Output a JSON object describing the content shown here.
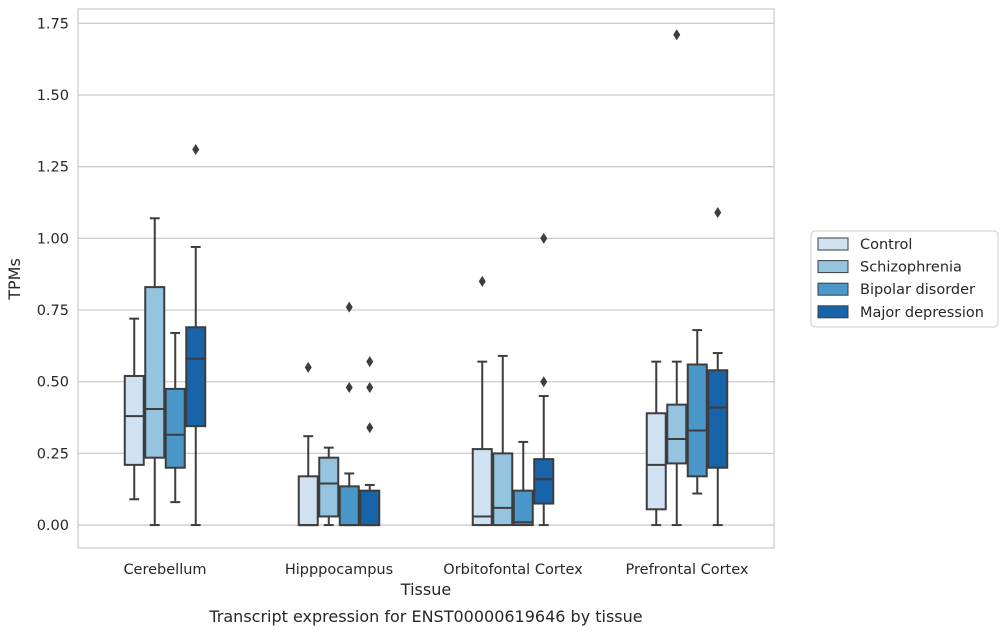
{
  "caption": "Transcript expression for ENST00000619646 by tissue",
  "chart_data": {
    "type": "box",
    "xlabel": "Tissue",
    "ylabel": "TPMs",
    "ylim": [
      -0.08,
      1.8
    ],
    "yticks": [
      0.0,
      0.25,
      0.5,
      0.75,
      1.0,
      1.25,
      1.5,
      1.75
    ],
    "ytick_labels": [
      "0.00",
      "0.25",
      "0.50",
      "0.75",
      "1.00",
      "1.25",
      "1.50",
      "1.75"
    ],
    "grid": "horizontal",
    "legend_position": "right",
    "categories": [
      "Cerebellum",
      "Hipppocampus",
      "Orbitofontal Cortex",
      "Prefrontal Cortex"
    ],
    "series": [
      {
        "name": "Control",
        "color": "#d0e1f2",
        "boxes": [
          {
            "whislo": 0.09,
            "q1": 0.21,
            "med": 0.38,
            "q3": 0.52,
            "whishi": 0.72,
            "fliers": []
          },
          {
            "whislo": 0.0,
            "q1": 0.0,
            "med": 0.0,
            "q3": 0.17,
            "whishi": 0.31,
            "fliers": [
              0.55
            ]
          },
          {
            "whislo": 0.0,
            "q1": 0.0,
            "med": 0.03,
            "q3": 0.265,
            "whishi": 0.57,
            "fliers": [
              0.85
            ]
          },
          {
            "whislo": 0.0,
            "q1": 0.055,
            "med": 0.21,
            "q3": 0.39,
            "whishi": 0.57,
            "fliers": []
          }
        ]
      },
      {
        "name": "Schizophrenia",
        "color": "#94c4df",
        "boxes": [
          {
            "whislo": 0.0,
            "q1": 0.235,
            "med": 0.405,
            "q3": 0.83,
            "whishi": 1.07,
            "fliers": []
          },
          {
            "whislo": 0.0,
            "q1": 0.03,
            "med": 0.145,
            "q3": 0.235,
            "whishi": 0.27,
            "fliers": []
          },
          {
            "whislo": 0.0,
            "q1": 0.0,
            "med": 0.06,
            "q3": 0.25,
            "whishi": 0.59,
            "fliers": []
          },
          {
            "whislo": 0.0,
            "q1": 0.215,
            "med": 0.3,
            "q3": 0.42,
            "whishi": 0.57,
            "fliers": [
              1.71
            ]
          }
        ]
      },
      {
        "name": "Bipolar disorder",
        "color": "#4a98c9",
        "boxes": [
          {
            "whislo": 0.08,
            "q1": 0.2,
            "med": 0.315,
            "q3": 0.475,
            "whishi": 0.67,
            "fliers": []
          },
          {
            "whislo": 0.0,
            "q1": 0.0,
            "med": 0.0,
            "q3": 0.135,
            "whishi": 0.18,
            "fliers": [
              0.48,
              0.76
            ]
          },
          {
            "whislo": 0.0,
            "q1": 0.0,
            "med": 0.01,
            "q3": 0.12,
            "whishi": 0.29,
            "fliers": []
          },
          {
            "whislo": 0.11,
            "q1": 0.17,
            "med": 0.33,
            "q3": 0.56,
            "whishi": 0.68,
            "fliers": []
          }
        ]
      },
      {
        "name": "Major depression",
        "color": "#1764ab",
        "boxes": [
          {
            "whislo": 0.0,
            "q1": 0.345,
            "med": 0.58,
            "q3": 0.69,
            "whishi": 0.97,
            "fliers": [
              1.31
            ]
          },
          {
            "whislo": 0.0,
            "q1": 0.0,
            "med": 0.0,
            "q3": 0.12,
            "whishi": 0.14,
            "fliers": [
              0.34,
              0.48,
              0.57
            ]
          },
          {
            "whislo": 0.0,
            "q1": 0.075,
            "med": 0.16,
            "q3": 0.23,
            "whishi": 0.45,
            "fliers": [
              0.5,
              1.0
            ]
          },
          {
            "whislo": 0.0,
            "q1": 0.2,
            "med": 0.41,
            "q3": 0.54,
            "whishi": 0.6,
            "fliers": [
              1.09
            ]
          }
        ]
      }
    ]
  }
}
